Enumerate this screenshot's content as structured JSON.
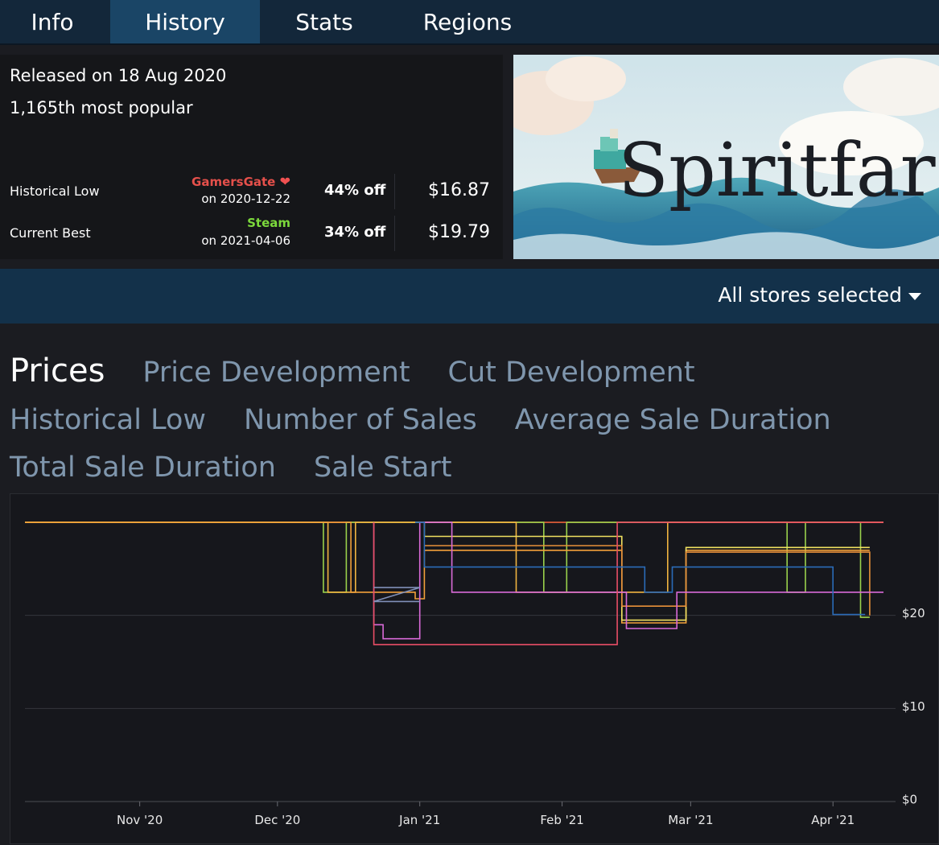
{
  "tabs": [
    {
      "label": "Info",
      "active": false
    },
    {
      "label": "History",
      "active": true
    },
    {
      "label": "Stats",
      "active": false
    },
    {
      "label": "Regions",
      "active": false
    }
  ],
  "info": {
    "released": "Released on 18 Aug 2020",
    "popularity": "1,165th most popular",
    "historical_low": {
      "label": "Historical Low",
      "store": "GamersGate",
      "store_color": "#e5504b",
      "date": "on 2020-12-22",
      "cut": "44% off",
      "price": "$16.87"
    },
    "current_best": {
      "label": "Current Best",
      "store": "Steam",
      "store_color": "#7cd93c",
      "date": "on 2021-04-06",
      "cut": "34% off",
      "price": "$19.79"
    }
  },
  "banner": {
    "title": "Spiritfarer"
  },
  "store_filter": {
    "label": "All stores selected"
  },
  "chart_nav": {
    "items": [
      "Prices",
      "Price Development",
      "Cut Development",
      "Historical Low",
      "Number of Sales",
      "Average Sale Duration",
      "Total Sale Duration",
      "Sale Start"
    ],
    "active": "Prices"
  },
  "chart_data": {
    "type": "line",
    "step": true,
    "x_ticks": [
      "Nov '20",
      "Dec '20",
      "Jan '21",
      "Feb '21",
      "Mar '21",
      "Apr '21"
    ],
    "y_ticks": [
      "$0",
      "$10",
      "$20"
    ],
    "ylim": [
      0,
      30
    ],
    "xlim": [
      "2020-10-07",
      "2021-04-12"
    ],
    "grid": true,
    "series": [
      {
        "color": "#e8603a",
        "points": [
          [
            "2020-10-07",
            29.99
          ],
          [
            "2021-04-12",
            29.99
          ]
        ]
      },
      {
        "color": "#9ad14b",
        "points": [
          [
            "2020-10-07",
            29.99
          ],
          [
            "2020-12-11",
            29.99
          ],
          [
            "2020-12-11",
            22.49
          ],
          [
            "2020-12-16",
            22.49
          ],
          [
            "2020-12-16",
            29.99
          ],
          [
            "2021-01-28",
            29.99
          ],
          [
            "2021-01-28",
            22.49
          ],
          [
            "2021-02-02",
            22.49
          ],
          [
            "2021-02-02",
            29.99
          ],
          [
            "2021-03-22",
            29.99
          ],
          [
            "2021-03-22",
            22.49
          ],
          [
            "2021-03-26",
            22.49
          ],
          [
            "2021-03-26",
            29.99
          ],
          [
            "2021-04-07",
            29.99
          ],
          [
            "2021-04-07",
            19.79
          ],
          [
            "2021-04-09",
            19.79
          ]
        ]
      },
      {
        "color": "#f0b440",
        "points": [
          [
            "2020-10-07",
            29.99
          ],
          [
            "2020-12-12",
            29.99
          ],
          [
            "2020-12-12",
            22.49
          ],
          [
            "2020-12-18",
            22.49
          ],
          [
            "2020-12-18",
            29.99
          ],
          [
            "2021-01-22",
            29.99
          ],
          [
            "2021-01-22",
            22.49
          ],
          [
            "2021-02-24",
            22.49
          ],
          [
            "2021-02-24",
            29.99
          ],
          [
            "2021-04-12",
            29.99
          ]
        ]
      },
      {
        "color": "#f2a03a",
        "points": [
          [
            "2020-10-07",
            29.99
          ],
          [
            "2020-12-17",
            29.99
          ],
          [
            "2020-12-17",
            22.49
          ],
          [
            "2020-12-31",
            22.49
          ],
          [
            "2020-12-31",
            21.79
          ],
          [
            "2021-01-02",
            21.79
          ],
          [
            "2021-01-02",
            26.99
          ],
          [
            "2021-02-14",
            26.99
          ],
          [
            "2021-02-14",
            19.19
          ],
          [
            "2021-02-28",
            19.19
          ],
          [
            "2021-02-28",
            26.99
          ],
          [
            "2021-04-09",
            26.99
          ]
        ]
      },
      {
        "color": "#f0e060",
        "points": [
          [
            "2020-12-31",
            29.99
          ],
          [
            "2021-01-02",
            29.99
          ],
          [
            "2021-01-02",
            28.49
          ],
          [
            "2021-02-14",
            28.49
          ],
          [
            "2021-02-14",
            19.49
          ],
          [
            "2021-02-28",
            19.49
          ],
          [
            "2021-02-28",
            27.29
          ],
          [
            "2021-04-09",
            27.29
          ]
        ]
      },
      {
        "color": "#e8903a",
        "points": [
          [
            "2021-01-02",
            27.49
          ],
          [
            "2021-02-14",
            27.49
          ],
          [
            "2021-02-14",
            20.99
          ],
          [
            "2021-02-28",
            20.99
          ],
          [
            "2021-02-28",
            26.79
          ],
          [
            "2021-04-09",
            26.79
          ],
          [
            "2021-04-09",
            19.99
          ]
        ]
      },
      {
        "color": "#d96ad8",
        "points": [
          [
            "2020-12-22",
            29.99
          ],
          [
            "2020-12-22",
            18.99
          ],
          [
            "2020-12-24",
            18.99
          ],
          [
            "2020-12-24",
            17.49
          ],
          [
            "2021-01-01",
            17.49
          ],
          [
            "2021-01-01",
            29.99
          ],
          [
            "2021-01-08",
            29.99
          ],
          [
            "2021-01-08",
            22.49
          ],
          [
            "2021-02-15",
            22.49
          ],
          [
            "2021-02-15",
            18.59
          ],
          [
            "2021-02-26",
            18.59
          ],
          [
            "2021-02-26",
            22.49
          ],
          [
            "2021-04-12",
            22.49
          ]
        ]
      },
      {
        "color": "#e84e66",
        "points": [
          [
            "2020-12-22",
            29.99
          ],
          [
            "2020-12-22",
            16.87
          ],
          [
            "2020-12-23",
            16.87
          ],
          [
            "2021-02-13",
            16.87
          ],
          [
            "2021-02-13",
            29.99
          ],
          [
            "2021-04-12",
            29.99
          ]
        ]
      },
      {
        "color": "#8090b8",
        "points": [
          [
            "2020-12-22",
            22.99
          ],
          [
            "2021-01-01",
            22.99
          ],
          [
            "2020-12-22",
            21.49
          ],
          [
            "2021-01-01",
            21.49
          ]
        ]
      },
      {
        "color": "#2a6bb8",
        "points": [
          [
            "2020-12-31",
            29.99
          ],
          [
            "2021-01-02",
            29.99
          ],
          [
            "2021-01-02",
            25.19
          ],
          [
            "2021-02-19",
            25.19
          ],
          [
            "2021-02-19",
            22.49
          ],
          [
            "2021-02-25",
            22.49
          ],
          [
            "2021-02-25",
            25.19
          ],
          [
            "2021-04-01",
            25.19
          ],
          [
            "2021-04-01",
            20.09
          ],
          [
            "2021-04-08",
            20.09
          ]
        ]
      }
    ]
  }
}
